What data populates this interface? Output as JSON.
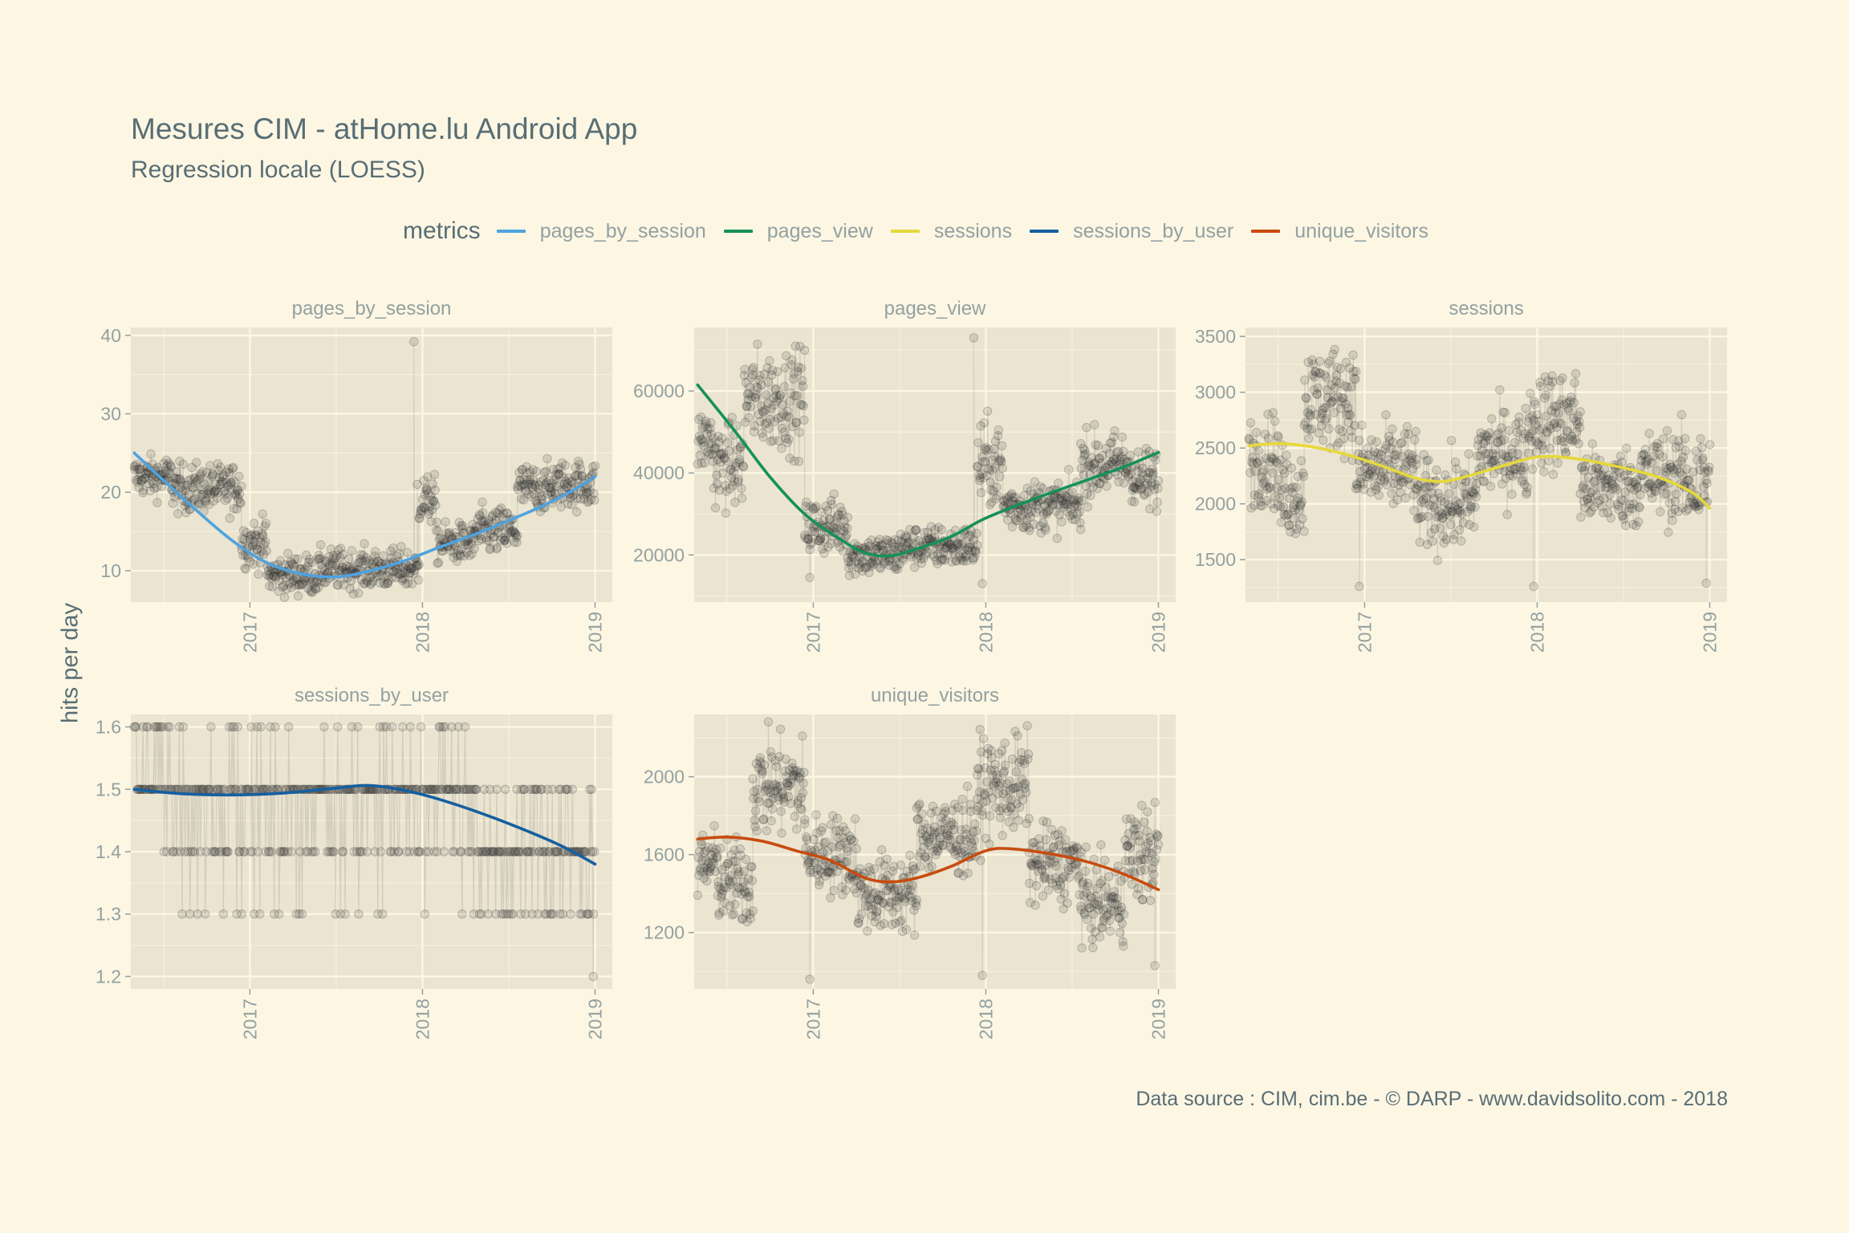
{
  "title": "Mesures CIM - atHome.lu Android App",
  "subtitle": "Regression locale (LOESS)",
  "y_axis_label": "hits per day",
  "caption": "Data source : CIM, cim.be - © DARP - www.davidsolito.com - 2018",
  "legend": {
    "title": "metrics",
    "items": [
      {
        "label": "pages_by_session",
        "color": "#4ea3df"
      },
      {
        "label": "pages_view",
        "color": "#159157"
      },
      {
        "label": "sessions",
        "color": "#e6d83b"
      },
      {
        "label": "sessions_by_user",
        "color": "#155fa0"
      },
      {
        "label": "unique_visitors",
        "color": "#c84b0e"
      }
    ]
  },
  "colors": {
    "background": "#fdf6e3",
    "panel": "#eae4d0",
    "grid": "#fdf6e3",
    "text": "#586e75",
    "tick_text": "#93a1a1",
    "points": "#2d2d2d"
  },
  "chart_data": [
    {
      "type": "scatter",
      "facet": "pages_by_session",
      "loess_color": "#4ea3df",
      "xlim": [
        2016.31,
        2019.1
      ],
      "ylim": [
        6,
        41
      ],
      "yticks": [
        10,
        20,
        30,
        40
      ],
      "xticks": [
        2017,
        2018,
        2019
      ],
      "loess": [
        [
          2016.33,
          25
        ],
        [
          2016.5,
          21.5
        ],
        [
          2016.7,
          17.5
        ],
        [
          2016.9,
          13.8
        ],
        [
          2017.1,
          11
        ],
        [
          2017.3,
          9.6
        ],
        [
          2017.5,
          9.2
        ],
        [
          2017.7,
          10
        ],
        [
          2017.9,
          11.3
        ],
        [
          2018.1,
          13
        ],
        [
          2018.3,
          14.6
        ],
        [
          2018.5,
          16.4
        ],
        [
          2018.7,
          18.3
        ],
        [
          2018.9,
          20.6
        ],
        [
          2019,
          22
        ]
      ],
      "segments": [
        [
          2016.33,
          2016.55,
          22,
          2.5
        ],
        [
          2016.55,
          2016.95,
          20.5,
          3
        ],
        [
          2016.95,
          2017.1,
          13.5,
          3
        ],
        [
          2017.1,
          2017.4,
          9.5,
          2.5
        ],
        [
          2017.4,
          2017.98,
          10.2,
          2.5
        ],
        [
          2017.98,
          2018.08,
          19,
          3
        ],
        [
          2018.08,
          2018.3,
          13.5,
          2.5
        ],
        [
          2018.3,
          2018.55,
          15,
          3
        ],
        [
          2018.55,
          2018.75,
          20.5,
          3
        ],
        [
          2018.75,
          2019,
          21,
          3
        ]
      ],
      "spikes": [
        [
          2017.95,
          39.2
        ],
        [
          2017.97,
          21
        ]
      ]
    },
    {
      "type": "scatter",
      "facet": "pages_view",
      "loess_color": "#159157",
      "xlim": [
        2016.31,
        2019.1
      ],
      "ylim": [
        8500,
        75500
      ],
      "yticks": [
        20000,
        40000,
        60000
      ],
      "xticks": [
        2017,
        2018,
        2019
      ],
      "loess": [
        [
          2016.33,
          61500
        ],
        [
          2016.55,
          50000
        ],
        [
          2016.75,
          39000
        ],
        [
          2016.95,
          30000
        ],
        [
          2017.15,
          24000
        ],
        [
          2017.3,
          20500
        ],
        [
          2017.45,
          19800
        ],
        [
          2017.6,
          21500
        ],
        [
          2017.8,
          24500
        ],
        [
          2018,
          29000
        ],
        [
          2018.3,
          34000
        ],
        [
          2018.6,
          38500
        ],
        [
          2018.8,
          41500
        ],
        [
          2019,
          45000
        ]
      ],
      "segments": [
        [
          2016.33,
          2016.42,
          48000,
          8000
        ],
        [
          2016.42,
          2016.6,
          42000,
          10000
        ],
        [
          2016.6,
          2016.95,
          58000,
          12000
        ],
        [
          2016.95,
          2017.2,
          27000,
          7000
        ],
        [
          2017.2,
          2017.5,
          20000,
          5000
        ],
        [
          2017.5,
          2017.95,
          22000,
          5000
        ],
        [
          2017.95,
          2018.1,
          42000,
          10000
        ],
        [
          2018.1,
          2018.55,
          32000,
          6000
        ],
        [
          2018.55,
          2018.85,
          42000,
          8000
        ],
        [
          2018.85,
          2019,
          38000,
          8000
        ]
      ],
      "spikes": [
        [
          2017.93,
          73000
        ],
        [
          2016.98,
          14500
        ],
        [
          2017.98,
          13000
        ]
      ]
    },
    {
      "type": "scatter",
      "facet": "sessions",
      "loess_color": "#e6d83b",
      "xlim": [
        2016.31,
        2019.1
      ],
      "ylim": [
        1120,
        3580
      ],
      "yticks": [
        1500,
        2000,
        2500,
        3000,
        3500
      ],
      "xticks": [
        2017,
        2018,
        2019
      ],
      "loess": [
        [
          2016.33,
          2520
        ],
        [
          2016.5,
          2540
        ],
        [
          2016.7,
          2510
        ],
        [
          2016.9,
          2440
        ],
        [
          2017.1,
          2340
        ],
        [
          2017.3,
          2230
        ],
        [
          2017.45,
          2200
        ],
        [
          2017.6,
          2250
        ],
        [
          2017.8,
          2340
        ],
        [
          2018,
          2420
        ],
        [
          2018.2,
          2410
        ],
        [
          2018.45,
          2340
        ],
        [
          2018.7,
          2240
        ],
        [
          2018.9,
          2100
        ],
        [
          2019,
          1960
        ]
      ],
      "segments": [
        [
          2016.33,
          2016.5,
          2400,
          400
        ],
        [
          2016.5,
          2016.65,
          2100,
          400
        ],
        [
          2016.65,
          2016.95,
          2950,
          450
        ],
        [
          2016.95,
          2017.3,
          2300,
          400
        ],
        [
          2017.3,
          2017.65,
          2000,
          400
        ],
        [
          2017.65,
          2017.95,
          2450,
          400
        ],
        [
          2017.95,
          2018.25,
          2750,
          450
        ],
        [
          2018.25,
          2018.6,
          2150,
          350
        ],
        [
          2018.6,
          2018.85,
          2250,
          400
        ],
        [
          2018.85,
          2019,
          2200,
          500
        ]
      ],
      "spikes": [
        [
          2016.97,
          1260
        ],
        [
          2017.98,
          1260
        ],
        [
          2018.98,
          1290
        ]
      ]
    },
    {
      "type": "scatter",
      "facet": "sessions_by_user",
      "loess_color": "#155fa0",
      "discrete": true,
      "xlim": [
        2016.31,
        2019.1
      ],
      "ylim": [
        1.18,
        1.62
      ],
      "yticks": [
        1.2,
        1.3,
        1.4,
        1.5,
        1.6
      ],
      "xticks": [
        2017,
        2018,
        2019
      ],
      "loess": [
        [
          2016.33,
          1.5
        ],
        [
          2016.6,
          1.493
        ],
        [
          2016.9,
          1.491
        ],
        [
          2017.2,
          1.494
        ],
        [
          2017.5,
          1.502
        ],
        [
          2017.7,
          1.506
        ],
        [
          2017.95,
          1.495
        ],
        [
          2018.2,
          1.475
        ],
        [
          2018.5,
          1.445
        ],
        [
          2018.8,
          1.41
        ],
        [
          2019,
          1.38
        ]
      ],
      "levels": [
        [
          1.6,
          2016.33,
          2018.25
        ],
        [
          1.5,
          2016.33,
          2018.95
        ],
        [
          1.4,
          2016.5,
          2019
        ],
        [
          1.3,
          2016.6,
          2019
        ]
      ],
      "spikes": [
        [
          2018.99,
          1.2
        ]
      ]
    },
    {
      "type": "scatter",
      "facet": "unique_visitors",
      "loess_color": "#c84b0e",
      "xlim": [
        2016.31,
        2019.1
      ],
      "ylim": [
        910,
        2320
      ],
      "yticks": [
        1200,
        1600,
        2000
      ],
      "xticks": [
        2017,
        2018,
        2019
      ],
      "loess": [
        [
          2016.33,
          1680
        ],
        [
          2016.5,
          1690
        ],
        [
          2016.7,
          1670
        ],
        [
          2016.9,
          1620
        ],
        [
          2017.1,
          1570
        ],
        [
          2017.3,
          1480
        ],
        [
          2017.45,
          1460
        ],
        [
          2017.6,
          1480
        ],
        [
          2017.8,
          1540
        ],
        [
          2018,
          1620
        ],
        [
          2018.15,
          1630
        ],
        [
          2018.4,
          1600
        ],
        [
          2018.6,
          1560
        ],
        [
          2018.8,
          1500
        ],
        [
          2019,
          1420
        ]
      ],
      "segments": [
        [
          2016.33,
          2016.45,
          1550,
          180
        ],
        [
          2016.45,
          2016.65,
          1450,
          220
        ],
        [
          2016.65,
          2016.95,
          1950,
          250
        ],
        [
          2016.95,
          2017.25,
          1600,
          200
        ],
        [
          2017.25,
          2017.6,
          1400,
          200
        ],
        [
          2017.6,
          2017.95,
          1700,
          200
        ],
        [
          2017.95,
          2018.25,
          1950,
          250
        ],
        [
          2018.25,
          2018.55,
          1550,
          200
        ],
        [
          2018.55,
          2018.8,
          1350,
          200
        ],
        [
          2018.8,
          2019,
          1600,
          250
        ]
      ],
      "spikes": [
        [
          2016.98,
          960
        ],
        [
          2017.98,
          980
        ],
        [
          2018.98,
          1030
        ]
      ]
    }
  ]
}
